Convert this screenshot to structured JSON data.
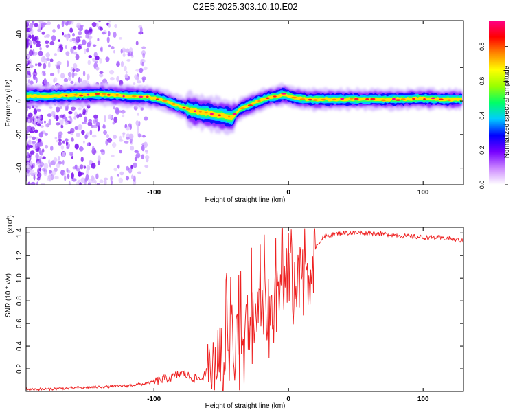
{
  "title": "C2E5.2025.303.10.10.E02",
  "chart_data": [
    {
      "type": "heatmap",
      "name": "spectrogram",
      "xlabel": "Height of straight line (km)",
      "ylabel": "Frequency (Hz)",
      "xlim": [
        -195,
        130
      ],
      "ylim": [
        -50,
        48
      ],
      "xticks": [
        -100,
        0,
        100
      ],
      "yticks": [
        -40,
        -20,
        0,
        20,
        40
      ],
      "colorbar": {
        "label": "Normalized spectral amplitude",
        "range": [
          0,
          0.95
        ],
        "ticks": [
          0.0,
          0.2,
          0.4,
          0.6,
          0.8
        ],
        "tick_labels": [
          "0.0",
          "0.2",
          "0.4",
          "0.6",
          "0.8"
        ],
        "colors": [
          "#ffffff",
          "#cc88ff",
          "#7700ff",
          "#0000ff",
          "#00ccff",
          "#00ff66",
          "#99ff00",
          "#ffff00",
          "#ff8800",
          "#ff0000",
          "#ff0088"
        ]
      },
      "ridge": {
        "x": [
          -195,
          -180,
          -160,
          -140,
          -120,
          -105,
          -95,
          -85,
          -78,
          -70,
          -62,
          -55,
          -48,
          -42,
          -38,
          -34,
          -28,
          -22,
          -15,
          -8,
          -4,
          0,
          5,
          15,
          40,
          80,
          100,
          115,
          130
        ],
        "y": [
          3,
          3,
          3.5,
          4,
          3,
          2.5,
          1,
          -2,
          -4,
          -6,
          -7,
          -8,
          -9,
          -10,
          -6,
          -4,
          -2,
          0,
          2,
          3,
          4,
          3,
          2,
          1,
          1,
          1,
          1.5,
          1,
          1
        ]
      },
      "noise_region": [
        -195,
        -105
      ]
    },
    {
      "type": "line",
      "name": "snr",
      "xlabel": "Height of straight line (km)",
      "ylabel": "SNR (10 * v/v)",
      "scale_label": "(x10^4)",
      "scale_base": "(x10",
      "scale_exp": "4",
      "xlim": [
        -195,
        130
      ],
      "ylim": [
        0,
        1.45
      ],
      "xticks": [
        -100,
        0,
        100
      ],
      "yticks": [
        0.2,
        0.4,
        0.6,
        0.8,
        1.0,
        1.2,
        1.4
      ],
      "color": "#ee2222",
      "series": [
        {
          "name": "SNR",
          "x": [
            -195,
            -180,
            -160,
            -140,
            -120,
            -105,
            -95,
            -88,
            -82,
            -78,
            -72,
            -65,
            -60,
            -55,
            -50,
            -45,
            -40,
            -35,
            -30,
            -25,
            -20,
            -15,
            -10,
            -5,
            0,
            5,
            10,
            15,
            20,
            25,
            30,
            40,
            50,
            60,
            70,
            80,
            90,
            100,
            110,
            120,
            130
          ],
          "y": [
            0.02,
            0.02,
            0.03,
            0.04,
            0.05,
            0.07,
            0.1,
            0.12,
            0.15,
            0.16,
            0.12,
            0.11,
            0.18,
            0.25,
            0.35,
            0.45,
            0.5,
            0.55,
            0.6,
            0.65,
            0.7,
            0.75,
            0.85,
            0.95,
            1.0,
            1.05,
            1.1,
            1.18,
            1.28,
            1.35,
            1.38,
            1.4,
            1.4,
            1.4,
            1.39,
            1.38,
            1.37,
            1.36,
            1.36,
            1.35,
            1.33
          ]
        }
      ]
    }
  ]
}
